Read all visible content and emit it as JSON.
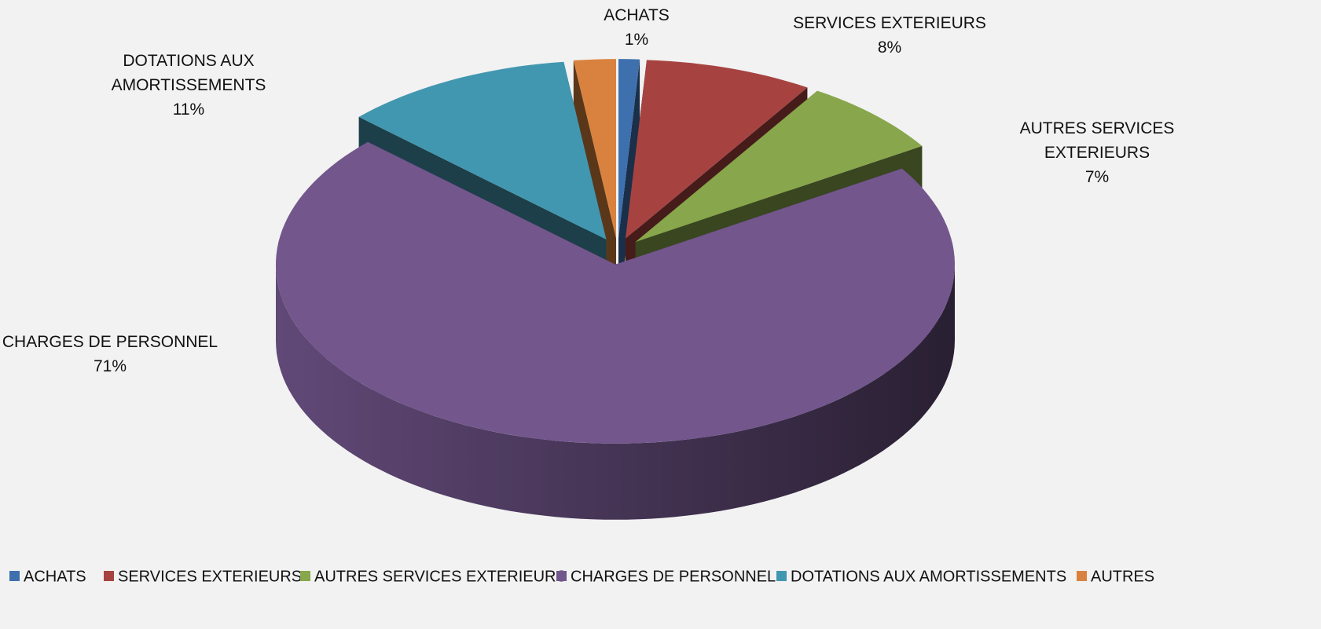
{
  "chart_data": {
    "type": "pie3d",
    "categories": [
      "ACHATS",
      "SERVICES EXTERIEURS",
      "AUTRES SERVICES EXTERIEURS",
      "CHARGES DE PERSONNEL",
      "DOTATIONS AUX AMORTISSEMENTS",
      "AUTRES"
    ],
    "values": [
      1,
      8,
      7,
      71,
      11,
      2
    ],
    "value_labels": [
      "1%",
      "8%",
      "7%",
      "71%",
      "11%",
      null
    ],
    "colors": [
      "#3f70ae",
      "#a64341",
      "#88a64b",
      "#72568c",
      "#4297b0",
      "#d9823f"
    ],
    "legend": "bottom"
  }
}
